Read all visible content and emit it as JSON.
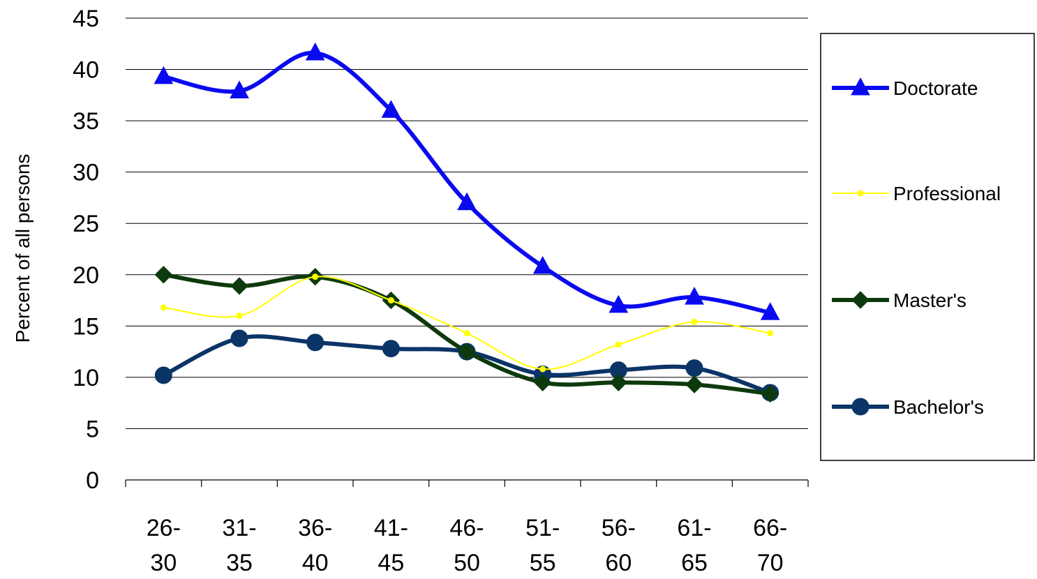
{
  "chart_data": {
    "type": "line",
    "title": "",
    "xlabel": "",
    "ylabel": "Percent of all persons",
    "ylim": [
      0,
      45
    ],
    "yticks": [
      "0",
      "5",
      "10",
      "15",
      "20",
      "25",
      "30",
      "35",
      "40",
      "45"
    ],
    "categories": [
      [
        "26-",
        "30"
      ],
      [
        "31-",
        "35"
      ],
      [
        "36-",
        "40"
      ],
      [
        "41-",
        "45"
      ],
      [
        "46-",
        "50"
      ],
      [
        "51-",
        "55"
      ],
      [
        "56-",
        "60"
      ],
      [
        "61-",
        "65"
      ],
      [
        "66-",
        "70"
      ]
    ],
    "grid": true,
    "legend_position": "right",
    "series": [
      {
        "name": "Doctorate",
        "color": "#0a0af0",
        "marker": "triangle",
        "line": "thick",
        "values": [
          39.3,
          37.9,
          41.6,
          36.0,
          27.0,
          20.8,
          17.0,
          17.8,
          16.3
        ]
      },
      {
        "name": "Professional",
        "color": "#ffff00",
        "marker": "small-circle",
        "line": "thin",
        "values": [
          16.8,
          16.0,
          19.8,
          17.5,
          14.3,
          10.8,
          13.2,
          15.4,
          14.3
        ]
      },
      {
        "name": "Master's",
        "color": "#0d3a0d",
        "marker": "diamond",
        "line": "thick",
        "values": [
          20.0,
          18.9,
          19.8,
          17.5,
          12.5,
          9.5,
          9.5,
          9.3,
          8.4
        ]
      },
      {
        "name": "Bachelor's",
        "color": "#0b3467",
        "marker": "circle",
        "line": "thick",
        "values": [
          10.2,
          13.8,
          13.4,
          12.8,
          12.5,
          10.3,
          10.7,
          10.9,
          8.5
        ]
      }
    ]
  }
}
